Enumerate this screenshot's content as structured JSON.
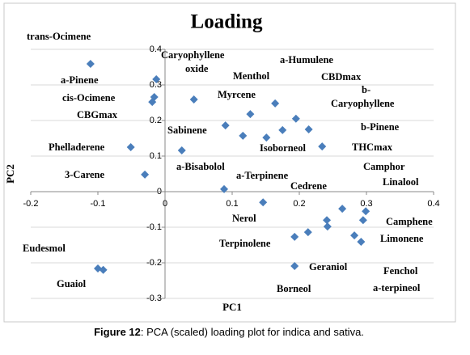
{
  "chart_data": {
    "type": "scatter",
    "title": "Loading",
    "x_label": "PC1",
    "y_label": "PC2",
    "x": [
      -0.111,
      -0.013,
      -0.016,
      -0.019,
      0.043,
      -0.051,
      -0.03,
      0.025,
      0.09,
      0.116,
      0.127,
      0.164,
      0.151,
      0.175,
      0.195,
      0.214,
      0.234,
      0.088,
      0.146,
      0.241,
      0.242,
      0.264,
      0.299,
      0.295,
      0.282,
      0.292,
      0.213,
      0.193,
      0.193,
      -0.1,
      -0.092
    ],
    "series": [
      {
        "color": "#4a7ebb",
        "values": [
          0.359,
          0.316,
          0.266,
          0.252,
          0.259,
          0.125,
          0.048,
          0.116,
          0.186,
          0.157,
          0.218,
          0.248,
          0.152,
          0.173,
          0.205,
          0.175,
          0.127,
          0.007,
          -0.03,
          -0.08,
          -0.098,
          -0.048,
          -0.055,
          -0.08,
          -0.123,
          -0.141,
          -0.114,
          -0.127,
          -0.209,
          -0.216,
          -0.22
        ]
      }
    ],
    "xlim": [
      -0.2,
      0.4
    ],
    "xticks": [
      -0.2,
      -0.1,
      0,
      0.1,
      0.2,
      0.3,
      0.4
    ],
    "ylim": [
      -0.3,
      0.4
    ],
    "yticks": [
      -0.3,
      -0.2,
      -0.1,
      0,
      0.1,
      0.2,
      0.3,
      0.4
    ],
    "grid": true,
    "annotations": [
      "trans-Ocimene",
      "a-Pinene",
      "cis-Ocimene",
      "CBGmax",
      "Phelladerene",
      "3-Carene",
      "Eudesmol",
      "Guaiol",
      "Caryophyllene",
      "oxide",
      "a-Humulene",
      "Menthol",
      "CBDmax",
      "b-",
      "Caryophyllene",
      "Myrcene",
      "Sabinene",
      "b-Pinene",
      "Isoborneol",
      "THCmax",
      "a-Bisabolol",
      "a-Terpinene",
      "Camphor",
      "Linalool",
      "Cedrene",
      "Nerol",
      "Camphene",
      "Limonene",
      "Terpinolene",
      "Geraniol",
      "Fenchol",
      "Borneol",
      "a-terpineol"
    ]
  },
  "caption": {
    "label": "Figure 12",
    "text": ": PCA (scaled) loading plot for indica and sativa."
  }
}
